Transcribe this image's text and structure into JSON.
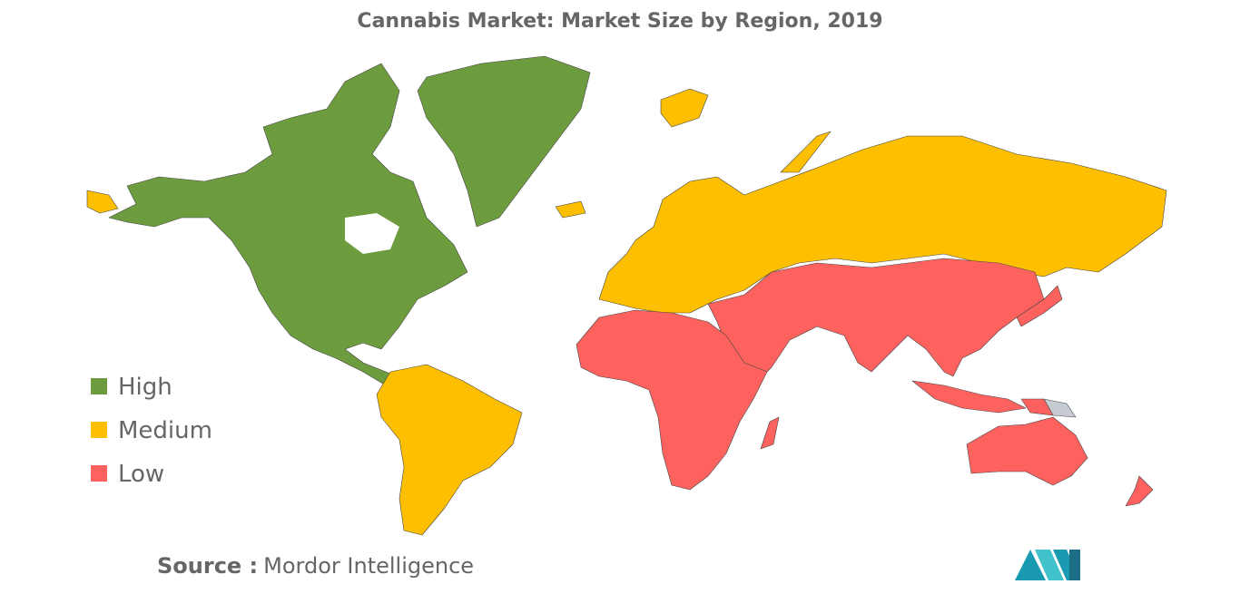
{
  "title": "Cannabis Market: Market Size by Region, 2019",
  "legend": [
    {
      "name": "High",
      "color": "#6d9c3e"
    },
    {
      "name": "Medium",
      "color": "#fdbf00"
    },
    {
      "name": "Low",
      "color": "#fd625e"
    }
  ],
  "no_data_color": "#c6cbd1",
  "source_label": "Source :",
  "source_text": "Mordor Intelligence"
}
